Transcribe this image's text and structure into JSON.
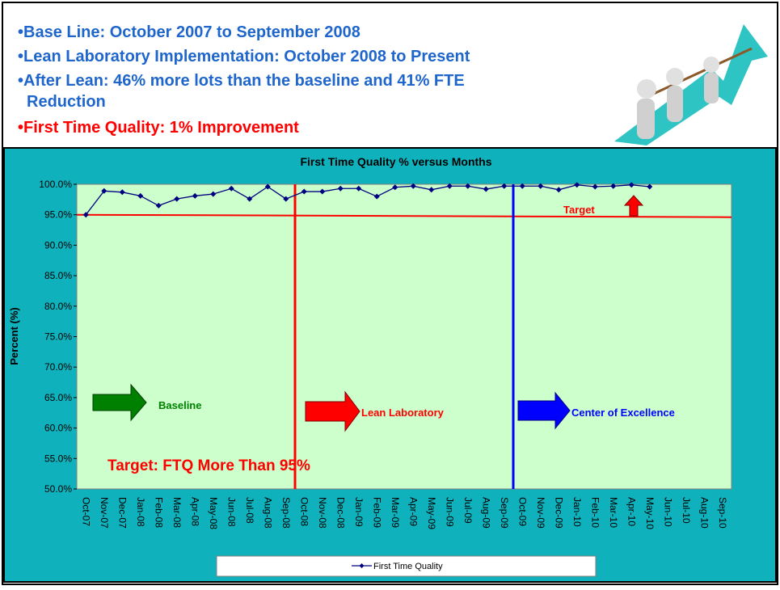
{
  "bullets": [
    "Base Line: October 2007 to September 2008",
    "Lean Laboratory Implementation: October 2008 to Present",
    "After Lean: 46% more lots than the baseline and 41% FTE",
    "Reduction",
    "First Time Quality: 1% Improvement"
  ],
  "chart_data": {
    "type": "line",
    "title": "First Time Quality % versus Months",
    "y_label": "Percent (%)",
    "categories": [
      "Oct-07",
      "Nov-07",
      "Dec-07",
      "Jan-08",
      "Feb-08",
      "Mar-08",
      "Apr-08",
      "May-08",
      "Jun-08",
      "Jul-08",
      "Aug-08",
      "Sep-08",
      "Oct-08",
      "Nov-08",
      "Dec-08",
      "Jan-09",
      "Feb-09",
      "Mar-09",
      "Apr-09",
      "May-09",
      "Jun-09",
      "Jul-09",
      "Aug-09",
      "Sep-09",
      "Oct-09",
      "Nov-09",
      "Dec-09",
      "Jan-10",
      "Feb-10",
      "Mar-10",
      "Apr-10",
      "May-10",
      "Jun-10",
      "Jul-10",
      "Aug-10",
      "Sep-10"
    ],
    "series": [
      {
        "name": "First Time Quality",
        "color": "#000080",
        "values": [
          95.0,
          98.9,
          98.7,
          98.1,
          96.5,
          97.6,
          98.1,
          98.4,
          99.3,
          97.6,
          99.6,
          97.6,
          98.8,
          98.8,
          99.3,
          99.3,
          98.0,
          99.5,
          99.7,
          99.1,
          99.7,
          99.7,
          99.2,
          99.7,
          99.7,
          99.7,
          99.1,
          99.9,
          99.6,
          99.7,
          99.9,
          99.6,
          null,
          null,
          null,
          null
        ]
      }
    ],
    "target": 95,
    "annotations": [
      "Target",
      "Baseline",
      "Lean Laboratory",
      "Center of Excellence",
      "Target: FTQ More Than 95%"
    ],
    "ylim": [
      50,
      100
    ],
    "yticks": [
      {
        "value": 50,
        "label": "50.0%"
      },
      {
        "value": 55,
        "label": "55.0%"
      },
      {
        "value": 60,
        "label": "60.0%"
      },
      {
        "value": 65,
        "label": "65.0%"
      },
      {
        "value": 70,
        "label": "70.0%"
      },
      {
        "value": 75,
        "label": "75.0%"
      },
      {
        "value": 80,
        "label": "80.0%"
      },
      {
        "value": 85,
        "label": "85.0%"
      },
      {
        "value": 90,
        "label": "90.0%"
      },
      {
        "value": 95,
        "label": "95.0%"
      },
      {
        "value": 100,
        "label": "100.0%"
      }
    ],
    "plot_color": "#ccffcc",
    "background_color": "#0fb2bc"
  }
}
